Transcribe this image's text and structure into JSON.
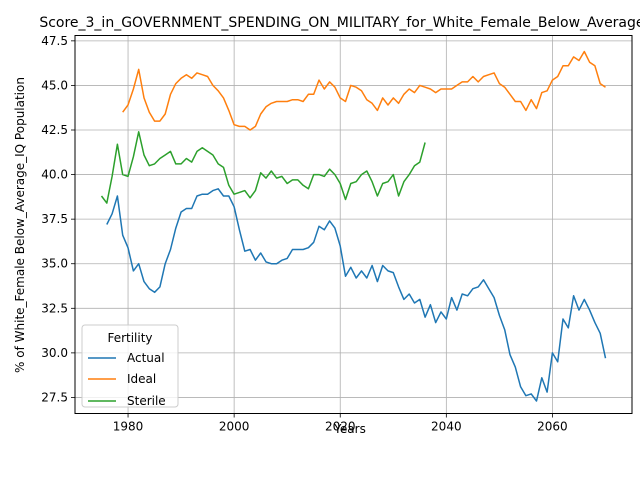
{
  "chart_data": {
    "type": "line",
    "title": "Score_3_in_GOVERNMENT_SPENDING_ON_MILITARY_for_White_Female_Below_Average_IQ",
    "xlabel": "Years",
    "ylabel": "% of White_Female Below_Average_IQ Population",
    "xlim": [
      1970,
      2075
    ],
    "ylim": [
      26.6,
      47.8
    ],
    "x_ticks": [
      1980,
      2000,
      2020,
      2040,
      2060
    ],
    "y_ticks": [
      27.5,
      30.0,
      32.5,
      35.0,
      37.5,
      40.0,
      42.5,
      45.0,
      47.5
    ],
    "x_tick_labels": [
      "1980",
      "2000",
      "2020",
      "2040",
      "2060"
    ],
    "y_tick_labels": [
      "27.5",
      "30.0",
      "32.5",
      "35.0",
      "37.5",
      "40.0",
      "42.5",
      "45.0",
      "47.5"
    ],
    "grid": true,
    "legend": {
      "title": "Fertility",
      "placement": "lower-left"
    },
    "series": [
      {
        "name": "Actual",
        "color": "#1f77b4",
        "x": [
          1976,
          1977,
          1978,
          1979,
          1980,
          1981,
          1982,
          1983,
          1984,
          1985,
          1986,
          1987,
          1988,
          1989,
          1990,
          1991,
          1992,
          1993,
          1994,
          1995,
          1996,
          1997,
          1998,
          1999,
          2000,
          2001,
          2002,
          2003,
          2004,
          2005,
          2006,
          2007,
          2008,
          2009,
          2010,
          2011,
          2012,
          2013,
          2014,
          2015,
          2016,
          2017,
          2018,
          2019,
          2020,
          2021,
          2022,
          2023,
          2024,
          2025,
          2026,
          2027,
          2028,
          2029,
          2030,
          2031,
          2032,
          2033,
          2034,
          2035,
          2036,
          2037,
          2038,
          2039,
          2040,
          2041,
          2042,
          2043,
          2044,
          2045,
          2046,
          2047,
          2048,
          2049,
          2050,
          2051,
          2052,
          2053,
          2054,
          2055,
          2056,
          2057,
          2058,
          2059,
          2060,
          2061,
          2062,
          2063,
          2064,
          2065,
          2066,
          2067,
          2068,
          2069,
          2070
        ],
        "values": [
          37.2,
          37.8,
          38.8,
          36.6,
          35.9,
          34.6,
          35.0,
          34.0,
          33.6,
          33.4,
          33.7,
          35.0,
          35.8,
          37.0,
          37.9,
          38.1,
          38.1,
          38.8,
          38.9,
          38.9,
          39.1,
          39.2,
          38.8,
          38.8,
          38.2,
          36.9,
          35.7,
          35.8,
          35.2,
          35.6,
          35.1,
          35.0,
          35.0,
          35.2,
          35.3,
          35.8,
          35.8,
          35.8,
          35.9,
          36.2,
          37.1,
          36.9,
          37.4,
          37.0,
          36.0,
          34.3,
          34.8,
          34.2,
          34.6,
          34.2,
          34.9,
          34.0,
          34.9,
          34.6,
          34.5,
          33.7,
          33.0,
          33.3,
          32.8,
          33.0,
          32.0,
          32.7,
          31.7,
          32.3,
          31.9,
          33.1,
          32.4,
          33.3,
          33.2,
          33.6,
          33.7,
          34.1,
          33.6,
          33.1,
          32.1,
          31.3,
          29.9,
          29.2,
          28.1,
          27.6,
          27.7,
          27.3,
          28.6,
          27.8,
          30.0,
          29.5,
          31.9,
          31.4,
          33.2,
          32.4,
          33.0,
          32.4,
          31.7,
          31.1,
          29.7
        ]
      },
      {
        "name": "Ideal",
        "color": "#ff7f0e",
        "x": [
          1979,
          1980,
          1981,
          1982,
          1983,
          1984,
          1985,
          1986,
          1987,
          1988,
          1989,
          1990,
          1991,
          1992,
          1993,
          1994,
          1995,
          1996,
          1997,
          1998,
          1999,
          2000,
          2001,
          2002,
          2003,
          2004,
          2005,
          2006,
          2007,
          2008,
          2009,
          2010,
          2011,
          2012,
          2013,
          2014,
          2015,
          2016,
          2017,
          2018,
          2019,
          2020,
          2021,
          2022,
          2023,
          2024,
          2025,
          2026,
          2027,
          2028,
          2029,
          2030,
          2031,
          2032,
          2033,
          2034,
          2035,
          2036,
          2037,
          2038,
          2039,
          2040,
          2041,
          2042,
          2043,
          2044,
          2045,
          2046,
          2047,
          2048,
          2049,
          2050,
          2051,
          2052,
          2053,
          2054,
          2055,
          2056,
          2057,
          2058,
          2059,
          2060,
          2061,
          2062,
          2063,
          2064,
          2065,
          2066,
          2067,
          2068,
          2069,
          2070
        ],
        "values": [
          43.5,
          43.9,
          44.8,
          45.9,
          44.3,
          43.5,
          43.0,
          43.0,
          43.4,
          44.5,
          45.1,
          45.4,
          45.6,
          45.4,
          45.7,
          45.6,
          45.5,
          45.0,
          44.7,
          44.3,
          43.6,
          42.8,
          42.7,
          42.7,
          42.5,
          42.7,
          43.4,
          43.8,
          44.0,
          44.1,
          44.1,
          44.1,
          44.2,
          44.2,
          44.1,
          44.5,
          44.5,
          45.3,
          44.8,
          45.2,
          44.9,
          44.3,
          44.1,
          45.0,
          44.9,
          44.7,
          44.2,
          44.0,
          43.6,
          44.3,
          43.9,
          44.3,
          44.0,
          44.5,
          44.8,
          44.6,
          45.0,
          44.9,
          44.8,
          44.6,
          44.8,
          44.8,
          44.8,
          45.0,
          45.2,
          45.2,
          45.5,
          45.2,
          45.5,
          45.6,
          45.7,
          45.1,
          44.9,
          44.5,
          44.1,
          44.1,
          43.6,
          44.2,
          43.7,
          44.6,
          44.7,
          45.3,
          45.5,
          46.1,
          46.1,
          46.6,
          46.4,
          46.9,
          46.3,
          46.1,
          45.1,
          44.9
        ]
      },
      {
        "name": "Sterile",
        "color": "#2ca02c",
        "x": [
          1975,
          1976,
          1977,
          1978,
          1979,
          1980,
          1981,
          1982,
          1983,
          1984,
          1985,
          1986,
          1987,
          1988,
          1989,
          1990,
          1991,
          1992,
          1993,
          1994,
          1995,
          1996,
          1997,
          1998,
          1999,
          2000,
          2001,
          2002,
          2003,
          2004,
          2005,
          2006,
          2007,
          2008,
          2009,
          2010,
          2011,
          2012,
          2013,
          2014,
          2015,
          2016,
          2017,
          2018,
          2019,
          2020,
          2021,
          2022,
          2023,
          2024,
          2025,
          2026,
          2027,
          2028,
          2029,
          2030,
          2031,
          2032,
          2033,
          2034,
          2035,
          2036
        ],
        "values": [
          38.8,
          38.4,
          39.9,
          41.7,
          40.0,
          39.9,
          41.0,
          42.4,
          41.1,
          40.5,
          40.6,
          40.9,
          41.1,
          41.3,
          40.6,
          40.6,
          40.9,
          40.7,
          41.3,
          41.5,
          41.3,
          41.1,
          40.6,
          40.4,
          39.4,
          38.9,
          39.0,
          39.1,
          38.7,
          39.1,
          40.1,
          39.8,
          40.2,
          39.8,
          39.9,
          39.5,
          39.7,
          39.7,
          39.4,
          39.2,
          40.0,
          40.0,
          39.9,
          40.3,
          40.0,
          39.5,
          38.6,
          39.5,
          39.6,
          40.0,
          40.2,
          39.6,
          38.8,
          39.5,
          39.6,
          40.0,
          38.8,
          39.6,
          40.0,
          40.5,
          40.7,
          41.8
        ]
      }
    ]
  }
}
